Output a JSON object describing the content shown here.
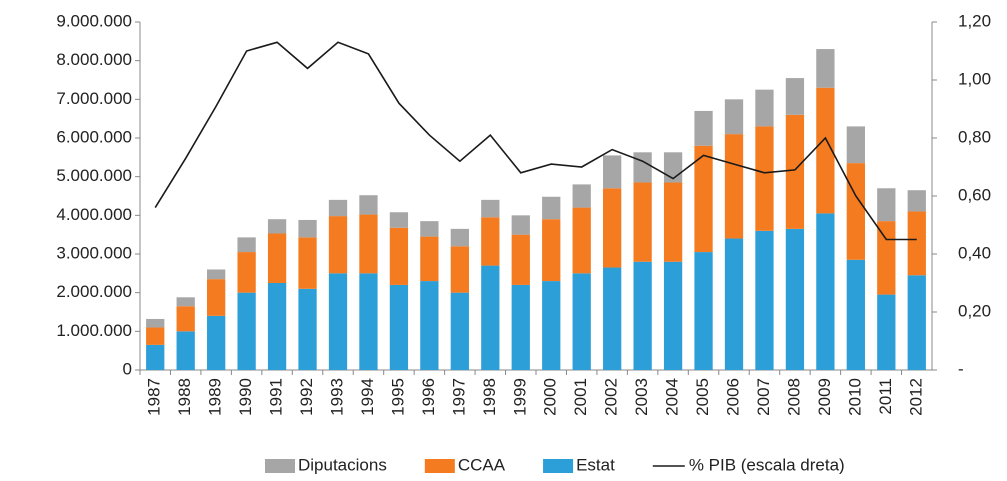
{
  "chart_data": {
    "type": "bar",
    "categories": [
      "1987",
      "1988",
      "1989",
      "1990",
      "1991",
      "1992",
      "1993",
      "1994",
      "1995",
      "1996",
      "1997",
      "1998",
      "1999",
      "2000",
      "2001",
      "2002",
      "2003",
      "2004",
      "2005",
      "2006",
      "2007",
      "2008",
      "2009",
      "2010",
      "2011",
      "2012"
    ],
    "stacked": true,
    "series": [
      {
        "name": "Diputacions",
        "color": "#a6a6a6",
        "values": [
          220000,
          230000,
          250000,
          380000,
          370000,
          450000,
          420000,
          500000,
          400000,
          400000,
          450000,
          450000,
          500000,
          580000,
          600000,
          850000,
          780000,
          780000,
          900000,
          900000,
          950000,
          950000,
          1000000,
          950000,
          850000,
          550000
        ]
      },
      {
        "name": "CCAA",
        "color": "#f47b20",
        "values": [
          450000,
          650000,
          950000,
          1050000,
          1280000,
          1330000,
          1480000,
          1520000,
          1480000,
          1150000,
          1200000,
          1250000,
          1300000,
          1600000,
          1700000,
          2050000,
          2050000,
          2050000,
          2750000,
          2700000,
          2700000,
          2950000,
          3250000,
          2500000,
          1900000,
          1650000
        ]
      },
      {
        "name": "Estat",
        "color": "#2c9fd9",
        "values": [
          650000,
          1000000,
          1400000,
          2000000,
          2250000,
          2100000,
          2500000,
          2500000,
          2200000,
          2300000,
          2000000,
          2700000,
          2200000,
          2300000,
          2500000,
          2650000,
          2800000,
          2800000,
          3050000,
          3400000,
          3600000,
          3650000,
          4050000,
          2850000,
          1950000,
          2450000
        ]
      },
      {
        "name": "% PIB (escala dreta)",
        "type": "line",
        "axis": "y2",
        "color": "#1a1a1a",
        "values": [
          0.56,
          0.73,
          0.91,
          1.1,
          1.13,
          1.04,
          1.13,
          1.09,
          0.92,
          0.81,
          0.72,
          0.81,
          0.68,
          0.71,
          0.7,
          0.76,
          0.72,
          0.66,
          0.74,
          0.71,
          0.68,
          0.69,
          0.8,
          0.6,
          0.45,
          0.45
        ]
      }
    ],
    "ylim": [
      0,
      9000000
    ],
    "yticks": [
      0,
      {
        "value": 1000000,
        "label": "1.000.000"
      },
      {
        "value": 2000000,
        "label": "2.000.000"
      },
      {
        "value": 3000000,
        "label": "3.000.000"
      },
      {
        "value": 4000000,
        "label": "4.000.000"
      },
      {
        "value": 5000000,
        "label": "5.000.000"
      },
      {
        "value": 6000000,
        "label": "6.000.000"
      },
      {
        "value": 7000000,
        "label": "7.000.000"
      },
      {
        "value": 8000000,
        "label": "8.000.000"
      },
      {
        "value": 9000000,
        "label": "9.000.000"
      }
    ],
    "y2lim": [
      0,
      1.2
    ],
    "y2ticks": [
      {
        "value": 0,
        "label": "-"
      },
      {
        "value": 0.2,
        "label": "0,20"
      },
      {
        "value": 0.4,
        "label": "0,40"
      },
      {
        "value": 0.6,
        "label": "0,60"
      },
      {
        "value": 0.8,
        "label": "0,80"
      },
      {
        "value": 1.0,
        "label": "1,00"
      },
      {
        "value": 1.2,
        "label": "1,20"
      }
    ],
    "grid": false,
    "legend": "bottom-right"
  }
}
